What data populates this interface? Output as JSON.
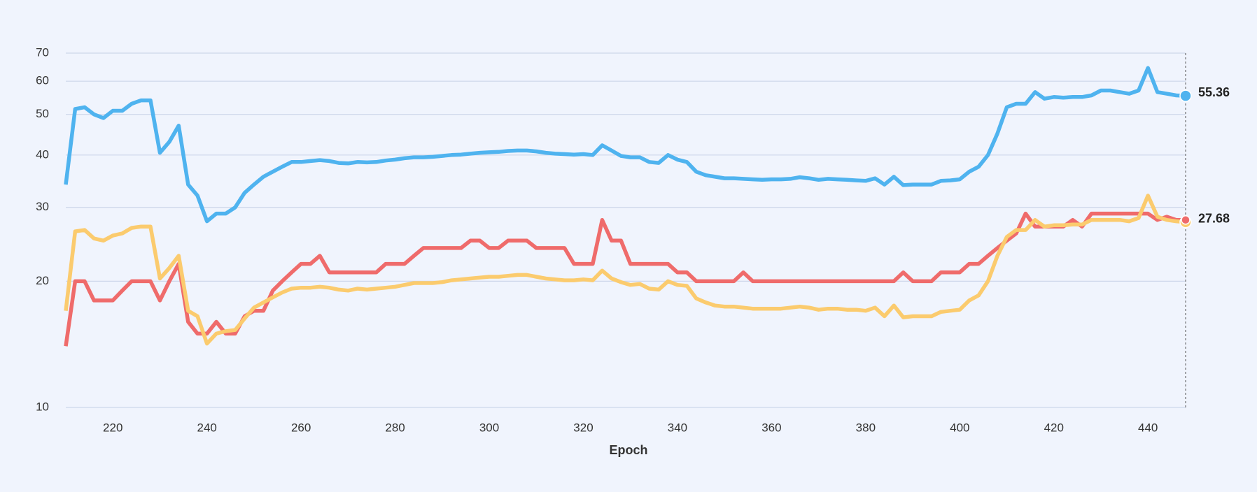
{
  "chart_data": {
    "type": "line",
    "xlabel": "Epoch",
    "log_y": true,
    "grid": true,
    "xlim": [
      210,
      448
    ],
    "xticks": [
      220,
      240,
      260,
      280,
      300,
      320,
      340,
      360,
      380,
      400,
      420,
      440
    ],
    "ylim": [
      10,
      70
    ],
    "yticks": [
      10,
      20,
      30,
      40,
      50,
      60,
      70
    ],
    "x": [
      210,
      212,
      214,
      216,
      218,
      220,
      222,
      224,
      226,
      228,
      230,
      232,
      234,
      236,
      238,
      240,
      242,
      244,
      246,
      248,
      250,
      252,
      254,
      256,
      258,
      260,
      262,
      264,
      266,
      268,
      270,
      272,
      274,
      276,
      278,
      280,
      282,
      284,
      286,
      288,
      290,
      292,
      294,
      296,
      298,
      300,
      302,
      304,
      306,
      308,
      310,
      312,
      314,
      316,
      318,
      320,
      322,
      324,
      326,
      328,
      330,
      332,
      334,
      336,
      338,
      340,
      342,
      344,
      346,
      348,
      350,
      352,
      354,
      356,
      358,
      360,
      362,
      364,
      366,
      368,
      370,
      372,
      374,
      376,
      378,
      380,
      382,
      384,
      386,
      388,
      390,
      392,
      394,
      396,
      398,
      400,
      402,
      404,
      406,
      408,
      410,
      412,
      414,
      416,
      418,
      420,
      422,
      424,
      426,
      428,
      430,
      432,
      434,
      436,
      438,
      440,
      442,
      444,
      446,
      448
    ],
    "series": [
      {
        "color": "#4fb3ef",
        "values": [
          34,
          51.5,
          52,
          50,
          49,
          51,
          51,
          53,
          54,
          54,
          40.5,
          43,
          47,
          34,
          32,
          27.8,
          29,
          29,
          30,
          32.5,
          34,
          35.5,
          36.5,
          37.5,
          38.5,
          38.5,
          38.7,
          38.9,
          38.7,
          38.3,
          38.2,
          38.5,
          38.4,
          38.5,
          38.8,
          39,
          39.3,
          39.5,
          39.5,
          39.6,
          39.8,
          40,
          40.1,
          40.3,
          40.5,
          40.6,
          40.7,
          40.9,
          41,
          41,
          40.8,
          40.5,
          40.3,
          40.2,
          40.1,
          40.2,
          40,
          42.2,
          41,
          39.8,
          39.5,
          39.5,
          38.5,
          38.3,
          40,
          39,
          38.5,
          36.5,
          35.8,
          35.5,
          35.2,
          35.2,
          35.1,
          35,
          34.9,
          35,
          35,
          35.1,
          35.4,
          35.2,
          34.9,
          35.1,
          35,
          34.9,
          34.8,
          34.7,
          35.2,
          34,
          35.5,
          33.9,
          34,
          34,
          34,
          34.7,
          34.8,
          35,
          36.5,
          37.5,
          40,
          45,
          52,
          53,
          53,
          56.5,
          54.5,
          55,
          54.8,
          55,
          55,
          55.5,
          57,
          57,
          56.5,
          56,
          57,
          64.5,
          56.5,
          56,
          55.5,
          55.36
        ]
      },
      {
        "color": "#ef6b6b",
        "values": [
          14,
          20,
          20,
          18,
          18,
          18,
          19,
          20,
          20,
          20,
          18,
          20,
          22,
          16,
          15,
          15,
          16,
          15,
          15,
          16.5,
          17,
          17,
          19,
          20,
          21,
          22,
          22,
          23,
          21,
          21,
          21,
          21,
          21,
          21,
          22,
          22,
          22,
          23,
          24,
          24,
          24,
          24,
          24,
          25,
          25,
          24,
          24,
          25,
          25,
          25,
          24,
          24,
          24,
          24,
          22,
          22,
          22,
          28,
          25,
          25,
          22,
          22,
          22,
          22,
          22,
          21,
          21,
          20,
          20,
          20,
          20,
          20,
          21,
          20,
          20,
          20,
          20,
          20,
          20,
          20,
          20,
          20,
          20,
          20,
          20,
          20,
          20,
          20,
          20,
          21,
          20,
          20,
          20,
          21,
          21,
          21,
          22,
          22,
          23,
          24,
          25,
          26,
          29,
          27,
          27,
          27,
          27,
          28,
          27,
          29,
          29,
          29,
          29,
          29,
          29,
          29,
          28,
          28.5,
          28,
          28
        ]
      },
      {
        "color": "#fbcb6e",
        "values": [
          17,
          26.3,
          26.5,
          25.3,
          25,
          25.7,
          26,
          26.8,
          27,
          27,
          20.3,
          21.5,
          23,
          17,
          16.5,
          14.2,
          15,
          15.2,
          15.3,
          16.3,
          17.3,
          17.8,
          18.3,
          18.8,
          19.2,
          19.3,
          19.3,
          19.4,
          19.3,
          19.1,
          19,
          19.2,
          19.1,
          19.2,
          19.3,
          19.4,
          19.6,
          19.8,
          19.8,
          19.8,
          19.9,
          20.1,
          20.2,
          20.3,
          20.4,
          20.5,
          20.5,
          20.6,
          20.7,
          20.7,
          20.5,
          20.3,
          20.2,
          20.1,
          20.1,
          20.2,
          20.1,
          21.2,
          20.3,
          19.9,
          19.6,
          19.7,
          19.2,
          19.1,
          20,
          19.6,
          19.5,
          18.2,
          17.8,
          17.5,
          17.4,
          17.4,
          17.3,
          17.2,
          17.2,
          17.2,
          17.2,
          17.3,
          17.4,
          17.3,
          17.1,
          17.2,
          17.2,
          17.1,
          17.1,
          17,
          17.3,
          16.5,
          17.5,
          16.4,
          16.5,
          16.5,
          16.5,
          16.9,
          17,
          17.1,
          18,
          18.5,
          20,
          23,
          25.5,
          26.5,
          26.5,
          28,
          27,
          27.2,
          27.2,
          27.3,
          27.3,
          28,
          28,
          28,
          28,
          27.8,
          28.3,
          32,
          28.5,
          28,
          27.8,
          27.68
        ]
      }
    ]
  }
}
